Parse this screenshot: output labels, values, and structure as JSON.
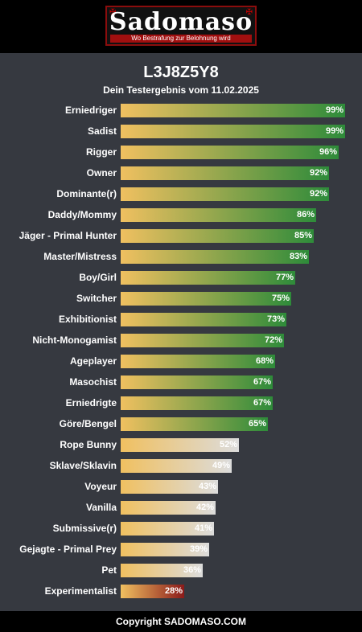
{
  "logo": {
    "title": "Sadomaso",
    "subtitle": "Wo Bestrafung zur Belohnung wird"
  },
  "result": {
    "code": "L3J8Z5Y8",
    "subtitle": "Dein Testergebnis vom 11.02.2025"
  },
  "colors": {
    "bar_start": "#f0c060",
    "high": "#2e8b3a",
    "mid": "#dcdcdc",
    "low": "#8b1a1a"
  },
  "results": [
    {
      "label": "Erniedriger",
      "value": 99,
      "tier": "high"
    },
    {
      "label": "Sadist",
      "value": 99,
      "tier": "high"
    },
    {
      "label": "Rigger",
      "value": 96,
      "tier": "high"
    },
    {
      "label": "Owner",
      "value": 92,
      "tier": "high"
    },
    {
      "label": "Dominante(r)",
      "value": 92,
      "tier": "high"
    },
    {
      "label": "Daddy/Mommy",
      "value": 86,
      "tier": "high"
    },
    {
      "label": "Jäger - Primal Hunter",
      "value": 85,
      "tier": "high"
    },
    {
      "label": "Master/Mistress",
      "value": 83,
      "tier": "high"
    },
    {
      "label": "Boy/Girl",
      "value": 77,
      "tier": "high"
    },
    {
      "label": "Switcher",
      "value": 75,
      "tier": "high"
    },
    {
      "label": "Exhibitionist",
      "value": 73,
      "tier": "high"
    },
    {
      "label": "Nicht-Monogamist",
      "value": 72,
      "tier": "high"
    },
    {
      "label": "Ageplayer",
      "value": 68,
      "tier": "high"
    },
    {
      "label": "Masochist",
      "value": 67,
      "tier": "high"
    },
    {
      "label": "Erniedrigte",
      "value": 67,
      "tier": "high"
    },
    {
      "label": "Göre/Bengel",
      "value": 65,
      "tier": "high"
    },
    {
      "label": "Rope Bunny",
      "value": 52,
      "tier": "mid"
    },
    {
      "label": "Sklave/Sklavin",
      "value": 49,
      "tier": "mid"
    },
    {
      "label": "Voyeur",
      "value": 43,
      "tier": "mid"
    },
    {
      "label": "Vanilla",
      "value": 42,
      "tier": "mid"
    },
    {
      "label": "Submissive(r)",
      "value": 41,
      "tier": "mid"
    },
    {
      "label": "Gejagte - Primal Prey",
      "value": 39,
      "tier": "mid"
    },
    {
      "label": "Pet",
      "value": 36,
      "tier": "mid"
    },
    {
      "label": "Experimentalist",
      "value": 28,
      "tier": "low"
    }
  ],
  "footer": {
    "copyright": "Copyright SADOMASO.COM"
  }
}
